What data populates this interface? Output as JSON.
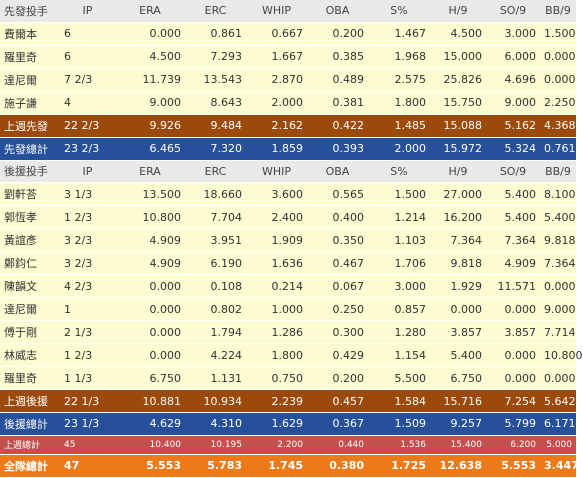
{
  "starters": {
    "header": [
      "先發投手",
      "IP",
      "ERA",
      "ERC",
      "WHIP",
      "OBA",
      "S%",
      "H/9",
      "SO/9",
      "BB/9"
    ],
    "rows": [
      [
        "費爾本",
        "6",
        "0.000",
        "0.861",
        "0.667",
        "0.200",
        "1.467",
        "4.500",
        "3.000",
        "1.500"
      ],
      [
        "羅里奇",
        "6",
        "4.500",
        "7.293",
        "1.667",
        "0.385",
        "1.968",
        "15.000",
        "6.000",
        "0.000"
      ],
      [
        "達尼爾",
        "7 2/3",
        "11.739",
        "13.543",
        "2.870",
        "0.489",
        "2.575",
        "25.826",
        "4.696",
        "0.000"
      ],
      [
        "施子謙",
        "4",
        "9.000",
        "8.643",
        "2.000",
        "0.381",
        "1.800",
        "15.750",
        "9.000",
        "2.250"
      ]
    ],
    "last_week": [
      "上週先發",
      "22 2/3",
      "9.926",
      "9.484",
      "2.162",
      "0.422",
      "1.485",
      "15.088",
      "5.162",
      "4.368"
    ],
    "total": [
      "先發總計",
      "23 2/3",
      "6.465",
      "7.320",
      "1.859",
      "0.393",
      "2.000",
      "15.972",
      "5.324",
      "0.761"
    ]
  },
  "relievers": {
    "header": [
      "後援投手",
      "IP",
      "ERA",
      "ERC",
      "WHIP",
      "OBA",
      "S%",
      "H/9",
      "SO/9",
      "BB/9"
    ],
    "rows": [
      [
        "劉軒荅",
        "3 1/3",
        "13.500",
        "18.660",
        "3.600",
        "0.565",
        "1.500",
        "27.000",
        "5.400",
        "8.100"
      ],
      [
        "郭恆孝",
        "1 2/3",
        "10.800",
        "7.704",
        "2.400",
        "0.400",
        "1.214",
        "16.200",
        "5.400",
        "5.400"
      ],
      [
        "黃誼彥",
        "3 2/3",
        "4.909",
        "3.951",
        "1.909",
        "0.350",
        "1.103",
        "7.364",
        "7.364",
        "9.818"
      ],
      [
        "鄭鈞仁",
        "3 2/3",
        "4.909",
        "6.190",
        "1.636",
        "0.467",
        "1.706",
        "9.818",
        "4.909",
        "7.364"
      ],
      [
        "陳韻文",
        "4 2/3",
        "0.000",
        "0.108",
        "0.214",
        "0.067",
        "3.000",
        "1.929",
        "11.571",
        "0.000"
      ],
      [
        "達尼爾",
        "1",
        "0.000",
        "0.802",
        "1.000",
        "0.250",
        "0.857",
        "0.000",
        "0.000",
        "9.000"
      ],
      [
        "傅于剛",
        "2 1/3",
        "0.000",
        "1.794",
        "1.286",
        "0.300",
        "1.280",
        "3.857",
        "3.857",
        "7.714"
      ],
      [
        "林威志",
        "1 2/3",
        "0.000",
        "4.224",
        "1.800",
        "0.429",
        "1.154",
        "5.400",
        "0.000",
        "10.800"
      ],
      [
        "羅里奇",
        "1 1/3",
        "6.750",
        "1.131",
        "0.750",
        "0.200",
        "5.500",
        "6.750",
        "0.000",
        "0.000"
      ]
    ],
    "last_week": [
      "上週後援",
      "22 1/3",
      "10.881",
      "10.934",
      "2.239",
      "0.457",
      "1.584",
      "15.716",
      "7.254",
      "5.642"
    ],
    "total": [
      "後援總計",
      "23 1/3",
      "4.629",
      "4.310",
      "1.629",
      "0.367",
      "1.509",
      "9.257",
      "5.799",
      "6.171"
    ]
  },
  "last_week_total": [
    "上週總計",
    "45",
    "10.400",
    "10.195",
    "2.200",
    "0.440",
    "1.536",
    "15.400",
    "6.200",
    "5.000"
  ],
  "team_total": [
    "全隊總計",
    "47",
    "5.553",
    "5.783",
    "1.745",
    "0.380",
    "1.725",
    "12.638",
    "5.553",
    "3.447"
  ]
}
